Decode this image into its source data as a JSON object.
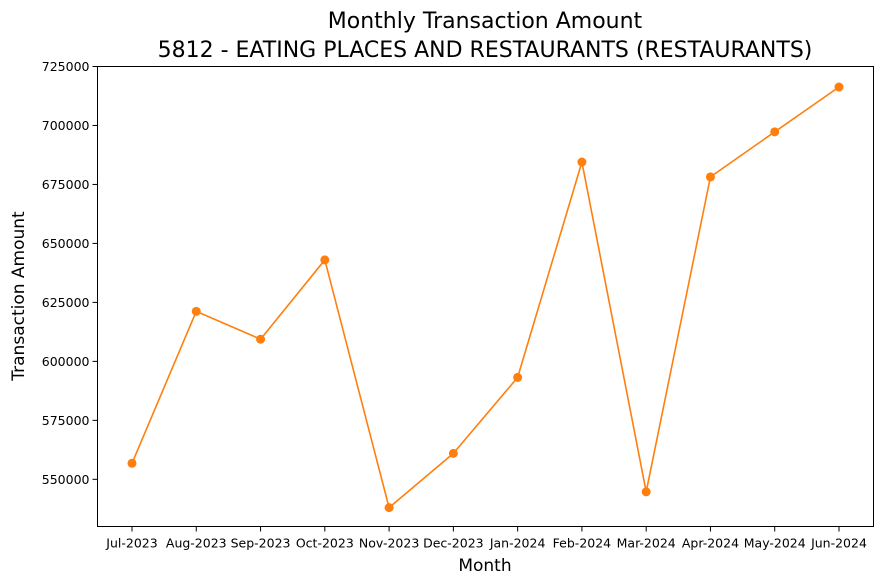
{
  "chart_data": {
    "type": "line",
    "title": "Monthly Transaction Amount",
    "subtitle": "5812 - EATING PLACES AND RESTAURANTS (RESTAURANTS)",
    "xlabel": "Month",
    "ylabel": "Transaction Amount",
    "categories": [
      "Jul-2023",
      "Aug-2023",
      "Sep-2023",
      "Oct-2023",
      "Nov-2023",
      "Dec-2023",
      "Jan-2024",
      "Feb-2024",
      "Mar-2024",
      "Apr-2024",
      "May-2024",
      "Jun-2024"
    ],
    "series": [
      {
        "values": [
          556800,
          621200,
          609400,
          643000,
          538000,
          561000,
          593200,
          684500,
          544700,
          678200,
          697300,
          716300
        ],
        "color": "#ff7f0e",
        "marker": "circle"
      }
    ],
    "ylim": [
      530000,
      725000
    ],
    "yticks": [
      550000,
      575000,
      600000,
      625000,
      650000,
      675000,
      700000,
      725000
    ],
    "ytick_labels": [
      "550000",
      "575000",
      "600000",
      "625000",
      "650000",
      "675000",
      "700000",
      "725000"
    ],
    "grid": false,
    "legend": false
  }
}
